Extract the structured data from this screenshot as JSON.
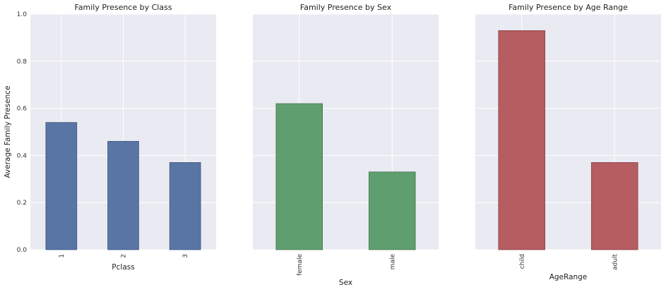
{
  "ylabel": "Average Family Presence",
  "y_ticks": [
    "0.0",
    "0.2",
    "0.4",
    "0.6",
    "0.8",
    "1.0"
  ],
  "colors": {
    "background": "#EAEAF2",
    "grid": "#FFFFFF"
  },
  "chart_data": [
    {
      "type": "bar",
      "title": "Family Presence by Class",
      "xlabel": "Pclass",
      "ylabel": "Average Family Presence",
      "categories": [
        "1",
        "2",
        "3"
      ],
      "values": [
        0.54,
        0.46,
        0.37
      ],
      "ylim": [
        0,
        1
      ],
      "color": "#5975A4",
      "edge_color": "#3F5680",
      "grid": true
    },
    {
      "type": "bar",
      "title": "Family Presence by Sex",
      "xlabel": "Sex",
      "ylabel": "",
      "categories": [
        "female",
        "male"
      ],
      "values": [
        0.62,
        0.33
      ],
      "ylim": [
        0,
        1
      ],
      "color": "#5F9E6E",
      "edge_color": "#45774F",
      "grid": true
    },
    {
      "type": "bar",
      "title": "Family Presence by Age Range",
      "xlabel": "AgeRange",
      "ylabel": "",
      "categories": [
        "child",
        "adult"
      ],
      "values": [
        0.93,
        0.37
      ],
      "ylim": [
        0,
        1
      ],
      "color": "#B55D60",
      "edge_color": "#874446",
      "grid": true
    }
  ]
}
